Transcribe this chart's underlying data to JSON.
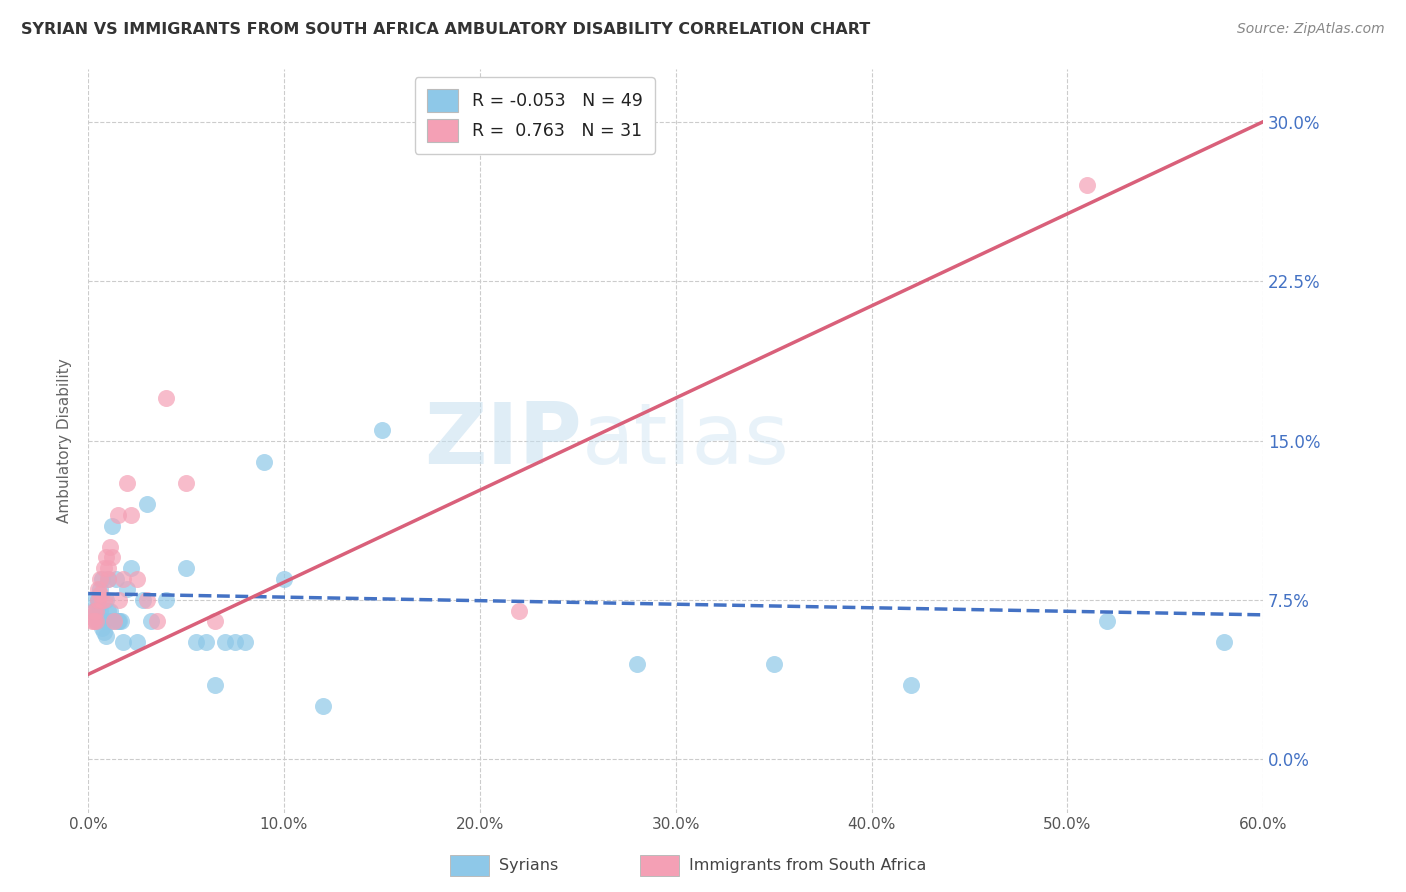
{
  "title": "SYRIAN VS IMMIGRANTS FROM SOUTH AFRICA AMBULATORY DISABILITY CORRELATION CHART",
  "source_text": "Source: ZipAtlas.com",
  "ylabel": "Ambulatory Disability",
  "ytick_labels": [
    "0.0%",
    "7.5%",
    "15.0%",
    "22.5%",
    "30.0%"
  ],
  "xlim": [
    0.0,
    0.6
  ],
  "ylim": [
    -0.025,
    0.325
  ],
  "color_blue": "#8ec8e8",
  "color_pink": "#f4a0b5",
  "color_line_blue": "#4472c4",
  "color_line_pink": "#d9607a",
  "watermark_zip": "ZIP",
  "watermark_atlas": "atlas",
  "legend_r1_label": "R = ",
  "legend_r1_val": "-0.053",
  "legend_n1_label": "N = ",
  "legend_n1_val": "49",
  "legend_r2_label": "R =  ",
  "legend_r2_val": "0.763",
  "legend_n2_label": "N = ",
  "legend_n2_val": "31",
  "syrians_x": [
    0.002,
    0.003,
    0.004,
    0.004,
    0.005,
    0.005,
    0.005,
    0.006,
    0.006,
    0.007,
    0.007,
    0.008,
    0.008,
    0.009,
    0.009,
    0.01,
    0.01,
    0.011,
    0.011,
    0.012,
    0.013,
    0.014,
    0.015,
    0.016,
    0.017,
    0.018,
    0.02,
    0.022,
    0.025,
    0.028,
    0.03,
    0.032,
    0.04,
    0.05,
    0.055,
    0.06,
    0.065,
    0.07,
    0.075,
    0.08,
    0.09,
    0.1,
    0.12,
    0.15,
    0.28,
    0.35,
    0.42,
    0.52,
    0.58
  ],
  "syrians_y": [
    0.075,
    0.07,
    0.068,
    0.065,
    0.075,
    0.072,
    0.065,
    0.08,
    0.07,
    0.062,
    0.085,
    0.065,
    0.06,
    0.075,
    0.058,
    0.085,
    0.07,
    0.07,
    0.065,
    0.11,
    0.065,
    0.085,
    0.065,
    0.065,
    0.065,
    0.055,
    0.08,
    0.09,
    0.055,
    0.075,
    0.12,
    0.065,
    0.075,
    0.09,
    0.055,
    0.055,
    0.035,
    0.055,
    0.055,
    0.055,
    0.14,
    0.085,
    0.025,
    0.155,
    0.045,
    0.045,
    0.035,
    0.065,
    0.055
  ],
  "sa_x": [
    0.002,
    0.003,
    0.003,
    0.004,
    0.004,
    0.005,
    0.005,
    0.006,
    0.006,
    0.007,
    0.008,
    0.008,
    0.009,
    0.01,
    0.01,
    0.011,
    0.012,
    0.013,
    0.015,
    0.016,
    0.018,
    0.02,
    0.022,
    0.025,
    0.03,
    0.035,
    0.04,
    0.05,
    0.065,
    0.22,
    0.51
  ],
  "sa_y": [
    0.065,
    0.07,
    0.065,
    0.07,
    0.065,
    0.08,
    0.075,
    0.085,
    0.078,
    0.075,
    0.09,
    0.075,
    0.095,
    0.09,
    0.085,
    0.1,
    0.095,
    0.065,
    0.115,
    0.075,
    0.085,
    0.13,
    0.115,
    0.085,
    0.075,
    0.065,
    0.17,
    0.13,
    0.065,
    0.07,
    0.27
  ],
  "blue_line_x": [
    0.0,
    0.6
  ],
  "blue_line_y": [
    0.078,
    0.068
  ],
  "pink_line_x": [
    0.0,
    0.6
  ],
  "pink_line_y": [
    0.04,
    0.3
  ]
}
